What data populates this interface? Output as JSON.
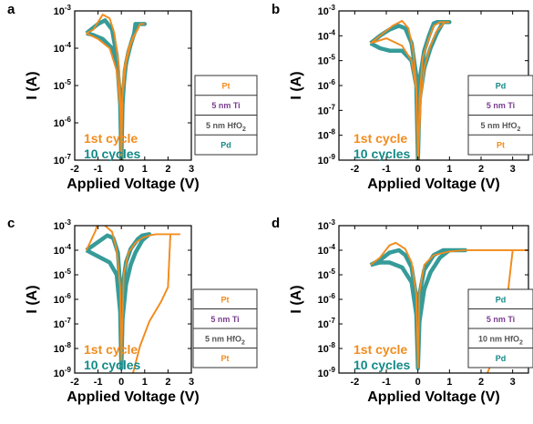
{
  "colors": {
    "first": "#f28c1e",
    "cycles": "#138a87",
    "ti": "#7a3d8f",
    "metal_pd": "#138a87",
    "metal_pt": "#f28c1e",
    "neutral": "#555555"
  },
  "chart_data": [
    {
      "panel": "a",
      "type": "line",
      "xlabel": "Applied Voltage (V)",
      "ylabel": "I (A)",
      "xlim": [
        -2,
        3
      ],
      "ylim_log10": [
        -7,
        -3
      ],
      "log_y": true,
      "xticks": [
        "-2",
        "-1",
        "0",
        "1",
        "2",
        "3"
      ],
      "yticks": [
        "10-7",
        "10-6",
        "10-5",
        "10-4",
        "10-3"
      ],
      "legend": [
        "1st cycle",
        "10 cycles"
      ],
      "stack": [
        {
          "text": "Pt",
          "color": "#f28c1e"
        },
        {
          "text": "5 nm Ti",
          "color": "#7a3d8f"
        },
        {
          "text": "5 nm HfO2",
          "color": "#555555"
        },
        {
          "text": "Pd",
          "color": "#138a87"
        }
      ],
      "series": [
        {
          "name": "1st cycle",
          "color": "#f28c1e",
          "x": [
            -1.5,
            -1.2,
            -0.8,
            -0.5,
            -0.3,
            -0.1,
            -0.03,
            0,
            0.03,
            0.1,
            0.3,
            0.5,
            0.7,
            0.8,
            1.0,
            0.8,
            0.6,
            0.4,
            0.2,
            0.05,
            0,
            -0.05,
            -0.2,
            -0.5,
            -1.0,
            -1.5
          ],
          "y": [
            -3.6,
            -3.5,
            -3.1,
            -3.2,
            -3.6,
            -4.5,
            -5.5,
            -7,
            -5.5,
            -4.6,
            -4.0,
            -3.7,
            -3.5,
            -3.35,
            -3.35,
            -3.35,
            -3.6,
            -3.9,
            -4.4,
            -5.3,
            -7,
            -5.6,
            -4.6,
            -4.0,
            -3.75,
            -3.6
          ]
        },
        {
          "name": "10 cycles",
          "color": "#138a87",
          "x": [
            -1.5,
            -1.3,
            -1.0,
            -0.7,
            -0.4,
            -0.2,
            -0.05,
            0,
            0.05,
            0.2,
            0.4,
            0.55,
            0.6,
            0.7,
            1.0,
            0.7,
            0.5,
            0.3,
            0.15,
            0.05,
            0,
            -0.05,
            -0.15,
            -0.4,
            -0.8,
            -1.2,
            -1.5
          ],
          "y": [
            -3.6,
            -3.5,
            -3.35,
            -3.25,
            -3.5,
            -4.2,
            -5.5,
            -7,
            -5.3,
            -4.4,
            -3.9,
            -3.6,
            -3.35,
            -3.35,
            -3.35,
            -3.35,
            -3.7,
            -4.1,
            -4.6,
            -5.5,
            -7,
            -5.4,
            -4.6,
            -4.0,
            -3.75,
            -3.65,
            -3.6
          ]
        }
      ]
    },
    {
      "panel": "b",
      "type": "line",
      "xlabel": "Applied Voltage (V)",
      "ylabel": "I (A)",
      "xlim": [
        -2.5,
        3.5
      ],
      "ylim_log10": [
        -9,
        -3
      ],
      "log_y": true,
      "xticks": [
        "-2",
        "-1",
        "0",
        "1",
        "2",
        "3"
      ],
      "yticks": [
        "10-9",
        "10-8",
        "10-7",
        "10-6",
        "10-5",
        "10-4",
        "10-3"
      ],
      "legend": [
        "1st cycle",
        "10 cycles"
      ],
      "stack": [
        {
          "text": "Pd",
          "color": "#138a87"
        },
        {
          "text": "5 nm Ti",
          "color": "#7a3d8f"
        },
        {
          "text": "5 nm HfO2",
          "color": "#555555"
        },
        {
          "text": "Pt",
          "color": "#f28c1e"
        }
      ],
      "series": [
        {
          "name": "1st cycle",
          "color": "#f28c1e",
          "x": [
            -1.5,
            -1.2,
            -0.8,
            -0.5,
            -0.3,
            -0.15,
            -0.05,
            0,
            0.05,
            0.15,
            0.35,
            0.5,
            0.7,
            0.8,
            1.0,
            0.85,
            0.6,
            0.4,
            0.2,
            0.1,
            0,
            -0.05,
            -0.2,
            -0.5,
            -1.0,
            -1.5
          ],
          "y": [
            -4.3,
            -4.0,
            -3.6,
            -3.4,
            -3.7,
            -4.6,
            -6.0,
            -9,
            -6.5,
            -4.9,
            -4.1,
            -3.6,
            -3.45,
            -3.45,
            -3.45,
            -3.45,
            -3.8,
            -4.4,
            -5.3,
            -6.5,
            -9,
            -6.2,
            -5.0,
            -4.4,
            -4.1,
            -4.3
          ]
        },
        {
          "name": "10 cycles",
          "color": "#138a87",
          "x": [
            -1.5,
            -1.2,
            -0.9,
            -0.6,
            -0.4,
            -0.2,
            -0.05,
            0,
            0.05,
            0.2,
            0.35,
            0.5,
            0.6,
            0.8,
            1.0,
            0.8,
            0.6,
            0.4,
            0.2,
            0.05,
            0,
            -0.05,
            -0.2,
            -0.5,
            -0.9,
            -1.2,
            -1.5
          ],
          "y": [
            -4.3,
            -4.0,
            -3.75,
            -3.6,
            -3.7,
            -4.3,
            -5.6,
            -9,
            -5.8,
            -4.6,
            -4.0,
            -3.5,
            -3.45,
            -3.45,
            -3.45,
            -3.45,
            -3.9,
            -4.5,
            -5.3,
            -6.6,
            -9,
            -6.0,
            -5.0,
            -4.6,
            -4.6,
            -4.5,
            -4.3
          ]
        }
      ]
    },
    {
      "panel": "c",
      "type": "line",
      "xlabel": "Applied Voltage (V)",
      "ylabel": "I (A)",
      "xlim": [
        -2,
        3
      ],
      "ylim_log10": [
        -9,
        -3
      ],
      "log_y": true,
      "xticks": [
        "-2",
        "-1",
        "0",
        "1",
        "2",
        "3"
      ],
      "yticks": [
        "10-9",
        "10-8",
        "10-7",
        "10-6",
        "10-5",
        "10-4",
        "10-3"
      ],
      "legend": [
        "1st cycle",
        "10 cycles"
      ],
      "stack": [
        {
          "text": "Pt",
          "color": "#f28c1e"
        },
        {
          "text": "5 nm Ti",
          "color": "#7a3d8f"
        },
        {
          "text": "5 nm HfO2",
          "color": "#555555"
        },
        {
          "text": "Pt",
          "color": "#f28c1e"
        }
      ],
      "series": [
        {
          "name": "1st cycle",
          "color": "#f28c1e",
          "x": [
            -1.5,
            -1.3,
            -1.1,
            -1.0,
            -0.7,
            -0.4,
            -0.2,
            -0.05,
            0,
            0.1,
            0.3,
            0.6,
            0.9,
            1.2,
            1.5,
            1.9,
            2.1,
            2.5,
            2.1,
            2.0,
            1.7,
            1.2,
            0.8,
            0.5
          ],
          "y": [
            -4.0,
            -3.6,
            -3.2,
            -2.85,
            -3.0,
            -3.25,
            -4.0,
            -5.5,
            -8.5,
            -5.0,
            -4.1,
            -3.7,
            -3.5,
            -3.4,
            -3.35,
            -3.35,
            -3.35,
            -3.35,
            -3.35,
            -5.5,
            -6.1,
            -6.9,
            -7.9,
            -9
          ]
        },
        {
          "name": "10 cycles",
          "color": "#138a87",
          "x": [
            -1.5,
            -1.2,
            -0.9,
            -0.6,
            -0.35,
            -0.15,
            -0.05,
            0,
            0.05,
            0.2,
            0.4,
            0.7,
            0.9,
            1.2,
            1.2,
            0.9,
            0.6,
            0.4,
            0.2,
            0.05,
            0,
            -0.05,
            -0.2,
            -0.5,
            -0.9,
            -1.2,
            -1.5
          ],
          "y": [
            -4.0,
            -3.8,
            -3.6,
            -3.4,
            -3.5,
            -4.1,
            -5.5,
            -8.8,
            -5.5,
            -4.5,
            -3.95,
            -3.55,
            -3.4,
            -3.35,
            -3.35,
            -3.6,
            -4.1,
            -4.6,
            -5.4,
            -6.8,
            -8.8,
            -6.5,
            -5.0,
            -4.5,
            -4.3,
            -4.15,
            -4.0
          ]
        }
      ]
    },
    {
      "panel": "d",
      "type": "line",
      "xlabel": "Applied Voltage (V)",
      "ylabel": "I (A)",
      "xlim": [
        -2.5,
        3.5
      ],
      "ylim_log10": [
        -9,
        -3
      ],
      "log_y": true,
      "xticks": [
        "-2",
        "-1",
        "0",
        "1",
        "2",
        "3"
      ],
      "yticks": [
        "10-9",
        "10-8",
        "10-7",
        "10-6",
        "10-5",
        "10-4",
        "10-3"
      ],
      "legend": [
        "1st cycle",
        "10 cycles"
      ],
      "stack": [
        {
          "text": "Pd",
          "color": "#138a87"
        },
        {
          "text": "5 nm Ti",
          "color": "#7a3d8f"
        },
        {
          "text": "10 nm HfO2",
          "color": "#555555"
        },
        {
          "text": "Pd",
          "color": "#138a87"
        }
      ],
      "series": [
        {
          "name": "1st cycle",
          "color": "#f28c1e",
          "x": [
            -1.5,
            -1.2,
            -0.9,
            -0.7,
            -0.4,
            -0.2,
            -0.05,
            0,
            0.05,
            0.2,
            0.5,
            1.0,
            1.5,
            2.0,
            2.5,
            3.0,
            3.5,
            3.0,
            2.8,
            2.6,
            2.4,
            2.2
          ],
          "y": [
            -4.6,
            -4.3,
            -3.8,
            -3.7,
            -3.95,
            -4.5,
            -5.8,
            -8.8,
            -5.7,
            -4.6,
            -4.2,
            -4.05,
            -4.0,
            -4.0,
            -4.0,
            -4.0,
            -4.0,
            -4.0,
            -6.3,
            -7.5,
            -8.4,
            -9
          ]
        },
        {
          "name": "10 cycles",
          "color": "#138a87",
          "x": [
            -1.5,
            -1.2,
            -0.9,
            -0.6,
            -0.4,
            -0.2,
            -0.05,
            0,
            0.05,
            0.2,
            0.5,
            0.8,
            1.0,
            1.5,
            1.0,
            0.7,
            0.4,
            0.2,
            0.05,
            0,
            -0.05,
            -0.2,
            -0.5,
            -0.9,
            -1.2,
            -1.5
          ],
          "y": [
            -4.6,
            -4.4,
            -4.1,
            -4.0,
            -4.2,
            -4.7,
            -5.9,
            -8.8,
            -5.8,
            -4.8,
            -4.2,
            -4.0,
            -4.0,
            -4.0,
            -4.0,
            -4.3,
            -4.9,
            -5.6,
            -6.9,
            -8.8,
            -6.6,
            -5.3,
            -4.7,
            -4.5,
            -4.5,
            -4.6
          ]
        }
      ]
    }
  ]
}
